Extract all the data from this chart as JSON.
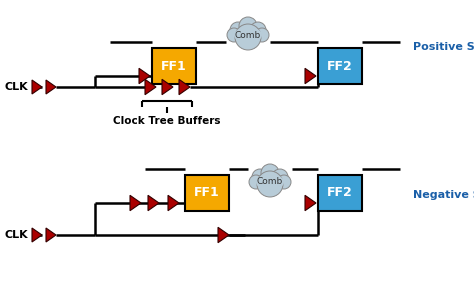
{
  "bg_color": "#ffffff",
  "ff_color": "#f5a800",
  "ff2_color": "#3a9fd4",
  "arrow_color": "#aa0000",
  "line_color": "#000000",
  "cloud_color": "#b8ccd8",
  "text_color": "#000000",
  "skew_text_color": "#1a5fa8",
  "label_pos_skew": "Positive Skew",
  "label_neg_skew": "Negative Skew",
  "label_clk": "CLK",
  "label_ctb": "Clock Tree Buffers",
  "label_ff1": "FF1",
  "label_ff2": "FF2",
  "label_comb": "Comb",
  "figsize": [
    4.74,
    2.85
  ],
  "dpi": 100
}
